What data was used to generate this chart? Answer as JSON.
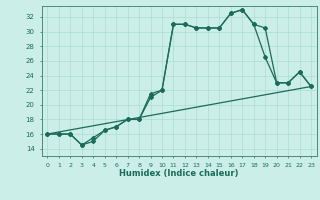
{
  "xlabel": "Humidex (Indice chaleur)",
  "bg_color": "#cceee8",
  "line_color": "#1a6b5a",
  "grid_color": "#aaddcc",
  "xlim": [
    -0.5,
    23.5
  ],
  "ylim": [
    13.0,
    33.5
  ],
  "yticks": [
    14,
    16,
    18,
    20,
    22,
    24,
    26,
    28,
    30,
    32
  ],
  "xticks": [
    0,
    1,
    2,
    3,
    4,
    5,
    6,
    7,
    8,
    9,
    10,
    11,
    12,
    13,
    14,
    15,
    16,
    17,
    18,
    19,
    20,
    21,
    22,
    23
  ],
  "line1_x": [
    0,
    1,
    2,
    3,
    4,
    5,
    6,
    7,
    8,
    9,
    10,
    11,
    12,
    13,
    14,
    15,
    16,
    17,
    18,
    19,
    20,
    21,
    22,
    23
  ],
  "line1_y": [
    16,
    16,
    16,
    14.5,
    15,
    16.5,
    17,
    18,
    18,
    21,
    22,
    31,
    31,
    30.5,
    30.5,
    30.5,
    32.5,
    33,
    31,
    30.5,
    23,
    23,
    24.5,
    22.5
  ],
  "line2_x": [
    0,
    1,
    2,
    3,
    4,
    5,
    6,
    7,
    8,
    9,
    10,
    11,
    12,
    13,
    14,
    15,
    16,
    17,
    18,
    19,
    20,
    21,
    22,
    23
  ],
  "line2_y": [
    16,
    16,
    16,
    14.5,
    15.5,
    16.5,
    17,
    18,
    18,
    21.5,
    22,
    31,
    31,
    30.5,
    30.5,
    30.5,
    32.5,
    33,
    31,
    26.5,
    23,
    23,
    24.5,
    22.5
  ],
  "line3_x": [
    0,
    23
  ],
  "line3_y": [
    16,
    22.5
  ]
}
